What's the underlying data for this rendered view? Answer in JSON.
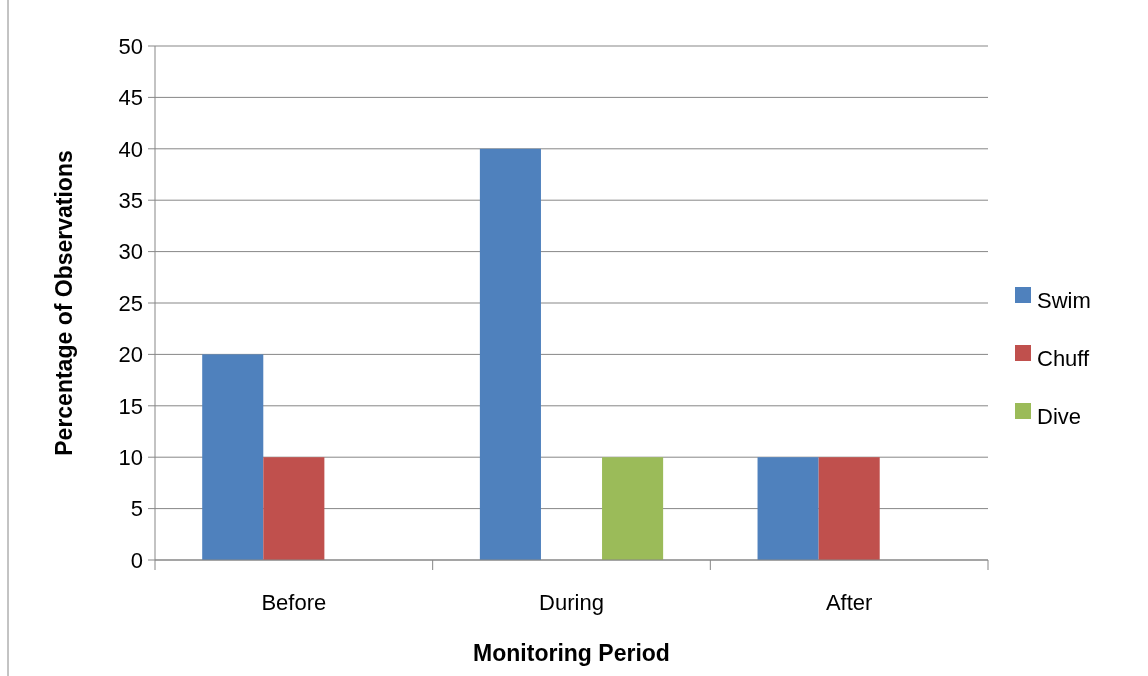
{
  "chart_data": {
    "type": "bar",
    "xlabel": "Monitoring Period",
    "ylabel": "Percentage of Observations",
    "categories": [
      "Before",
      "During",
      "After"
    ],
    "series": [
      {
        "name": "Swim",
        "color": "#4f81bd",
        "values": [
          20,
          40,
          10
        ]
      },
      {
        "name": "Chuff",
        "color": "#c0504d",
        "values": [
          10,
          0,
          10
        ]
      },
      {
        "name": "Dive",
        "color": "#9bbb59",
        "values": [
          0,
          10,
          0
        ]
      }
    ],
    "ylim": [
      0,
      50
    ],
    "yticks": [
      0,
      5,
      10,
      15,
      20,
      25,
      30,
      35,
      40,
      45,
      50
    ],
    "grid": "y",
    "legend": "right"
  }
}
